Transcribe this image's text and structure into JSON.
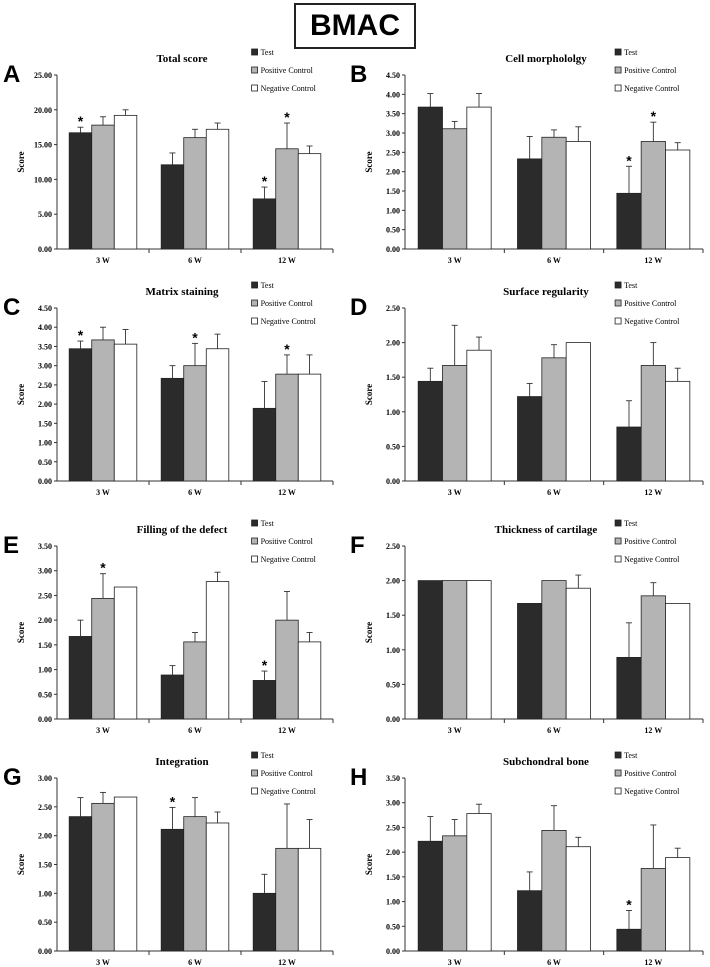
{
  "figure_title": "BMAC",
  "colors": {
    "test": "#2b2b2b",
    "positive": "#b4b4b4",
    "negative": "#ffffff",
    "axis": "#333333"
  },
  "chart_data": [
    {
      "type": "bar",
      "panel": "A",
      "title": "Total score",
      "ylabel": "Score",
      "categories": [
        "3 W",
        "6 W",
        "12 W"
      ],
      "ylim": [
        0,
        25
      ],
      "yticks": [
        "0.00",
        "5.00",
        "10.00",
        "15.00",
        "20.00",
        "25.00"
      ],
      "legend": [
        "Test",
        "Positive Control",
        "Negative Control"
      ],
      "series": [
        {
          "name": "Test",
          "values": [
            16.7,
            12.1,
            7.2
          ],
          "errors": [
            0.8,
            1.7,
            1.7
          ],
          "stars": [
            true,
            false,
            true
          ]
        },
        {
          "name": "Positive Control",
          "values": [
            17.8,
            16.0,
            14.4
          ],
          "errors": [
            1.2,
            1.2,
            3.7
          ],
          "stars": [
            false,
            false,
            true
          ]
        },
        {
          "name": "Negative Control",
          "values": [
            19.2,
            17.2,
            13.7
          ],
          "errors": [
            0.8,
            0.9,
            1.1
          ],
          "stars": [
            false,
            false,
            false
          ]
        }
      ]
    },
    {
      "type": "bar",
      "panel": "B",
      "title": "Cell morphololgy",
      "ylabel": "Score",
      "categories": [
        "3 W",
        "6 W",
        "12 W"
      ],
      "ylim": [
        0,
        4.5
      ],
      "yticks": [
        "0.00",
        "0.50",
        "1.00",
        "1.50",
        "2.00",
        "2.50",
        "3.00",
        "3.50",
        "4.00",
        "4.50"
      ],
      "legend": [
        "Test",
        "Positive Control",
        "Negative Control"
      ],
      "series": [
        {
          "name": "Test",
          "values": [
            3.67,
            2.33,
            1.44
          ],
          "errors": [
            0.35,
            0.58,
            0.7
          ],
          "stars": [
            false,
            false,
            true
          ]
        },
        {
          "name": "Positive Control",
          "values": [
            3.11,
            2.89,
            2.78
          ],
          "errors": [
            0.19,
            0.19,
            0.5
          ],
          "stars": [
            false,
            false,
            true
          ]
        },
        {
          "name": "Negative Control",
          "values": [
            3.67,
            2.78,
            2.56
          ],
          "errors": [
            0.35,
            0.38,
            0.19
          ],
          "stars": [
            false,
            false,
            false
          ]
        }
      ]
    },
    {
      "type": "bar",
      "panel": "C",
      "title": "Matrix staining",
      "ylabel": "Score",
      "categories": [
        "3 W",
        "6 W",
        "12 W"
      ],
      "ylim": [
        0,
        4.5
      ],
      "yticks": [
        "0.00",
        "0.50",
        "1.00",
        "1.50",
        "2.00",
        "2.50",
        "3.00",
        "3.50",
        "4.00",
        "4.50"
      ],
      "legend": [
        "Test",
        "Positive Control",
        "Negative Control"
      ],
      "series": [
        {
          "name": "Test",
          "values": [
            3.44,
            2.67,
            1.89
          ],
          "errors": [
            0.2,
            0.33,
            0.7
          ],
          "stars": [
            true,
            false,
            false
          ]
        },
        {
          "name": "Positive Control",
          "values": [
            3.67,
            3.0,
            2.78
          ],
          "errors": [
            0.33,
            0.58,
            0.5
          ],
          "stars": [
            false,
            true,
            true
          ]
        },
        {
          "name": "Negative Control",
          "values": [
            3.56,
            3.44,
            2.78
          ],
          "errors": [
            0.38,
            0.38,
            0.5
          ],
          "stars": [
            false,
            false,
            false
          ]
        }
      ]
    },
    {
      "type": "bar",
      "panel": "D",
      "title": "Surface regularity",
      "ylabel": "Score",
      "categories": [
        "3 W",
        "6 W",
        "12 W"
      ],
      "ylim": [
        0,
        2.5
      ],
      "yticks": [
        "0.00",
        "0.50",
        "1.00",
        "1.50",
        "2.00",
        "2.50"
      ],
      "legend": [
        "Test",
        "Positive Control",
        "Negative Control"
      ],
      "series": [
        {
          "name": "Test",
          "values": [
            1.44,
            1.22,
            0.78
          ],
          "errors": [
            0.19,
            0.19,
            0.38
          ],
          "stars": [
            false,
            false,
            false
          ]
        },
        {
          "name": "Positive Control",
          "values": [
            1.67,
            1.78,
            1.67
          ],
          "errors": [
            0.58,
            0.19,
            0.33
          ],
          "stars": [
            false,
            false,
            false
          ]
        },
        {
          "name": "Negative Control",
          "values": [
            1.89,
            2.0,
            1.44
          ],
          "errors": [
            0.19,
            0.0,
            0.19
          ],
          "stars": [
            false,
            false,
            false
          ]
        }
      ]
    },
    {
      "type": "bar",
      "panel": "E",
      "title": "Filling of the defect",
      "ylabel": "Score",
      "categories": [
        "3 W",
        "6 W",
        "12 W"
      ],
      "ylim": [
        0,
        3.5
      ],
      "yticks": [
        "0.00",
        "0.50",
        "1.00",
        "1.50",
        "2.00",
        "2.50",
        "3.00",
        "3.50"
      ],
      "legend": [
        "Test",
        "Positive Control",
        "Negative Control"
      ],
      "series": [
        {
          "name": "Test",
          "values": [
            1.67,
            0.89,
            0.78
          ],
          "errors": [
            0.33,
            0.19,
            0.19
          ],
          "stars": [
            false,
            false,
            true
          ]
        },
        {
          "name": "Positive Control",
          "values": [
            2.44,
            1.56,
            2.0
          ],
          "errors": [
            0.5,
            0.19,
            0.58
          ],
          "stars": [
            true,
            false,
            false
          ]
        },
        {
          "name": "Negative Control",
          "values": [
            2.67,
            2.78,
            1.56
          ],
          "errors": [
            0.0,
            0.19,
            0.19
          ],
          "stars": [
            false,
            false,
            false
          ]
        }
      ]
    },
    {
      "type": "bar",
      "panel": "F",
      "title": "Thickness of cartilage",
      "ylabel": "Score",
      "categories": [
        "3 W",
        "6 W",
        "12 W"
      ],
      "ylim": [
        0,
        2.5
      ],
      "yticks": [
        "0.00",
        "0.50",
        "1.00",
        "1.50",
        "2.00",
        "2.50"
      ],
      "legend": [
        "Test",
        "Positive Control",
        "Negative Control"
      ],
      "series": [
        {
          "name": "Test",
          "values": [
            2.0,
            1.67,
            0.89
          ],
          "errors": [
            0.0,
            0.0,
            0.5
          ],
          "stars": [
            false,
            false,
            false
          ]
        },
        {
          "name": "Positive Control",
          "values": [
            2.0,
            2.0,
            1.78
          ],
          "errors": [
            0.0,
            0.0,
            0.19
          ],
          "stars": [
            false,
            false,
            false
          ]
        },
        {
          "name": "Negative Control",
          "values": [
            2.0,
            1.89,
            1.67
          ],
          "errors": [
            0.0,
            0.19,
            0.0
          ],
          "stars": [
            false,
            false,
            false
          ]
        }
      ]
    },
    {
      "type": "bar",
      "panel": "G",
      "title": "Integration",
      "ylabel": "Score",
      "categories": [
        "3 W",
        "6 W",
        "12 W"
      ],
      "ylim": [
        0,
        3.0
      ],
      "yticks": [
        "0.00",
        "0.50",
        "1.00",
        "1.50",
        "2.00",
        "2.50",
        "3.00"
      ],
      "legend": [
        "Test",
        "Positive Control",
        "Negative Control"
      ],
      "series": [
        {
          "name": "Test",
          "values": [
            2.33,
            2.11,
            1.0
          ],
          "errors": [
            0.33,
            0.38,
            0.33
          ],
          "stars": [
            false,
            true,
            false
          ]
        },
        {
          "name": "Positive Control",
          "values": [
            2.56,
            2.33,
            1.78
          ],
          "errors": [
            0.19,
            0.33,
            0.77
          ],
          "stars": [
            false,
            false,
            false
          ]
        },
        {
          "name": "Negative Control",
          "values": [
            2.67,
            2.22,
            1.78
          ],
          "errors": [
            0.0,
            0.19,
            0.5
          ],
          "stars": [
            false,
            false,
            false
          ]
        }
      ]
    },
    {
      "type": "bar",
      "panel": "H",
      "title": "Subchondral bone",
      "ylabel": "Score",
      "categories": [
        "3 W",
        "6 W",
        "12 W"
      ],
      "ylim": [
        0,
        3.5
      ],
      "yticks": [
        "0.00",
        "0.50",
        "1.00",
        "1.50",
        "2.00",
        "2.50",
        "3.00",
        "3.50"
      ],
      "legend": [
        "Test",
        "Positive Control",
        "Negative Control"
      ],
      "series": [
        {
          "name": "Test",
          "values": [
            2.22,
            1.22,
            0.44
          ],
          "errors": [
            0.5,
            0.38,
            0.38
          ],
          "stars": [
            false,
            false,
            true
          ]
        },
        {
          "name": "Positive Control",
          "values": [
            2.33,
            2.44,
            1.67
          ],
          "errors": [
            0.33,
            0.5,
            0.88
          ],
          "stars": [
            false,
            false,
            false
          ]
        },
        {
          "name": "Negative Control",
          "values": [
            2.78,
            2.11,
            1.89
          ],
          "errors": [
            0.19,
            0.19,
            0.19
          ],
          "stars": [
            false,
            false,
            false
          ]
        }
      ]
    }
  ]
}
